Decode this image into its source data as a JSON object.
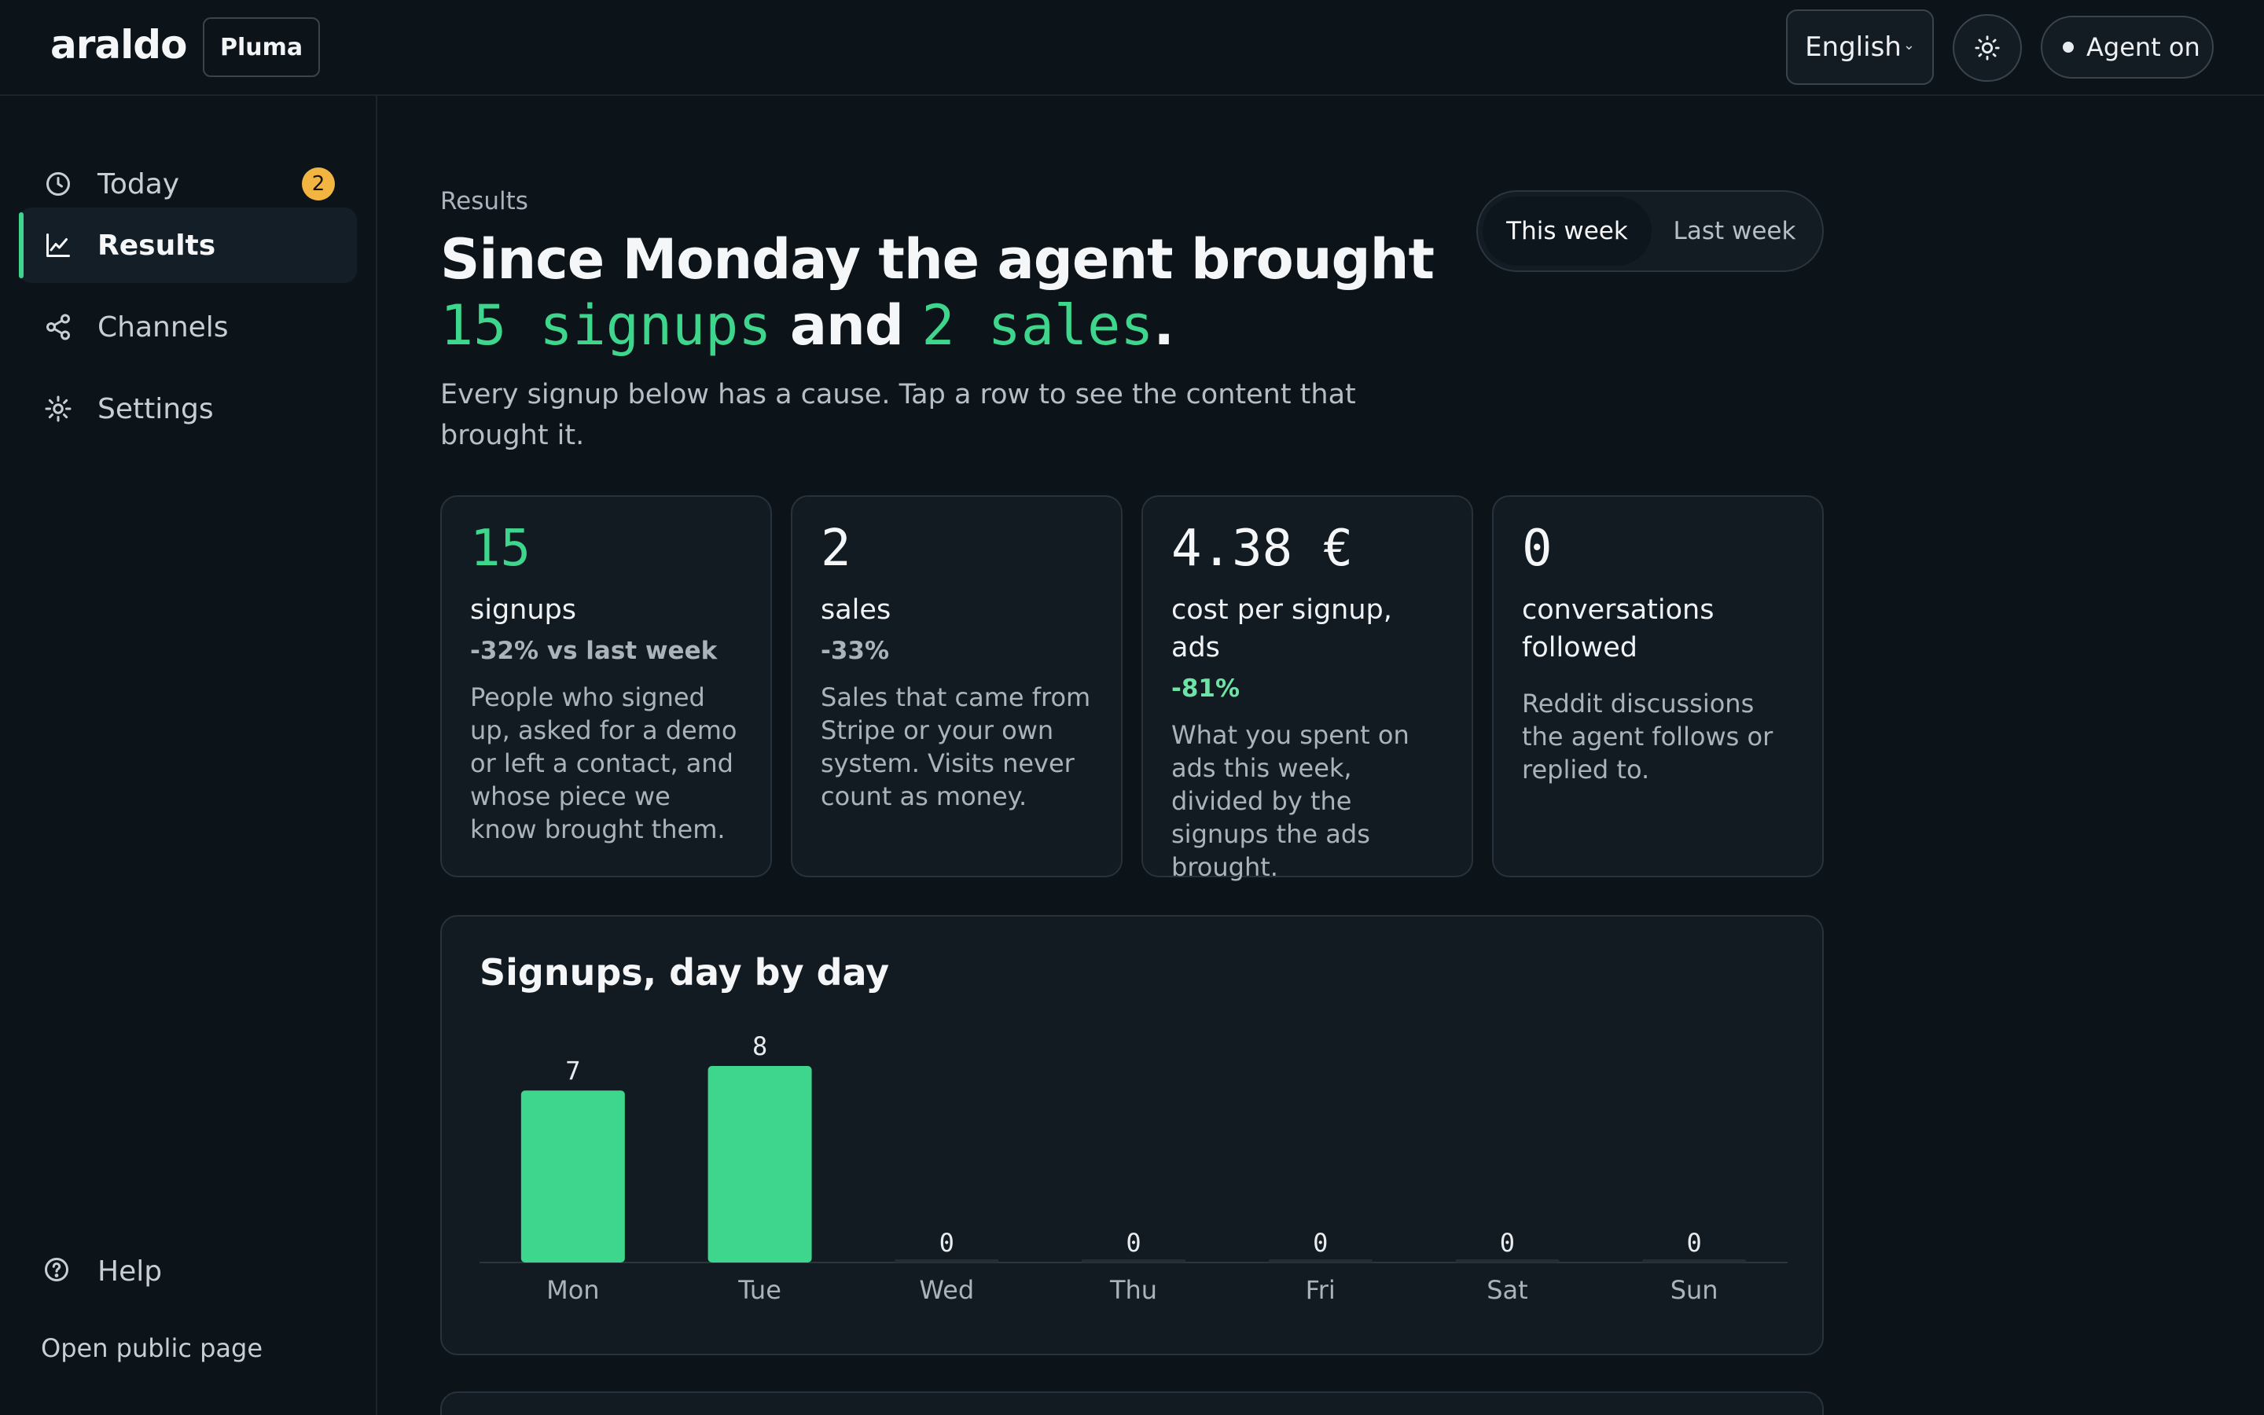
{
  "app": {
    "logo": "araldo",
    "workspace": "Pluma"
  },
  "header": {
    "language": "English",
    "agent_status": "Agent on"
  },
  "sidebar": {
    "items": [
      {
        "label": "Today",
        "icon": "clock-icon",
        "badge": "2"
      },
      {
        "label": "Results",
        "icon": "chart-line-icon",
        "active": true
      },
      {
        "label": "Channels",
        "icon": "share-icon"
      },
      {
        "label": "Settings",
        "icon": "gear-icon"
      }
    ],
    "help_label": "Help",
    "public_page_label": "Open public page"
  },
  "page": {
    "eyebrow": "Results",
    "headline_prefix": "Since Monday the agent brought",
    "headline_signups": "15 signups",
    "headline_and": "and",
    "headline_sales": "2 sales",
    "headline_end": ".",
    "subtext": "Every signup below has a cause. Tap a row to see the content that brought it.",
    "period_toggle": {
      "this_week": "This week",
      "last_week": "Last week",
      "selected": "This week"
    }
  },
  "stats": [
    {
      "value": "15",
      "label": "signups",
      "delta": "-32% vs last week",
      "description": "People who signed up, asked for a demo or left a contact, and whose piece we know brought them."
    },
    {
      "value": "2",
      "label": "sales",
      "delta": "-33%",
      "description": "Sales that came from Stripe or your own system. Visits never count as money."
    },
    {
      "value": "4.38 €",
      "label": "cost per signup, ads",
      "delta": "-81%",
      "description": "What you spent on ads this week, divided by the signups the ads brought."
    },
    {
      "value": "0",
      "label": "conversations followed",
      "description": "Reddit discussions the agent follows or replied to."
    }
  ],
  "chart_data": {
    "type": "bar",
    "title": "Signups, day by day",
    "categories": [
      "Mon",
      "Tue",
      "Wed",
      "Thu",
      "Fri",
      "Sat",
      "Sun"
    ],
    "values": [
      7,
      8,
      0,
      0,
      0,
      0,
      0
    ],
    "ylim": [
      0,
      8
    ],
    "grid": false,
    "bar_color": "#3dd68c"
  },
  "colors": {
    "accent": "#3dd68c",
    "badge": "#f2b542",
    "background": "#0c1319",
    "card": "#131b22"
  }
}
